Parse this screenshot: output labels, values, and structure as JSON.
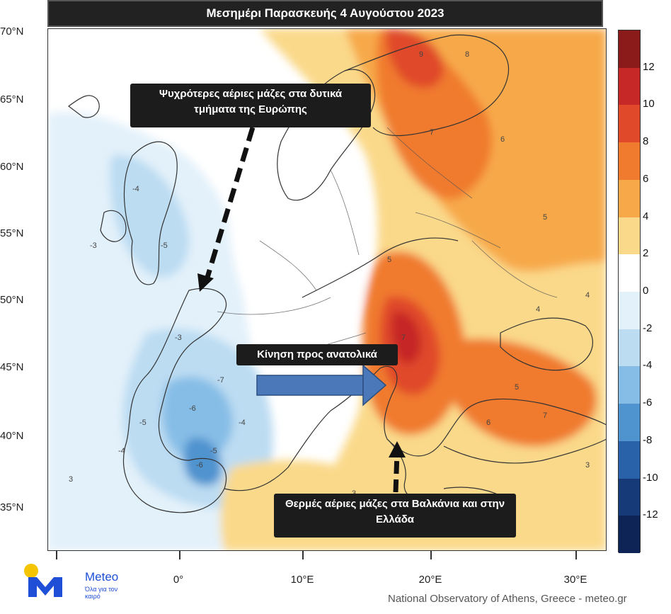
{
  "title": "Μεσημέρι Παρασκευής 4 Αυγούστου 2023",
  "latitude_labels": [
    "70°N",
    "65°N",
    "60°N",
    "55°N",
    "50°N",
    "45°N",
    "40°N",
    "35°N"
  ],
  "longitude_labels": [
    "0°",
    "10°E",
    "20°E",
    "30°E"
  ],
  "colorbar": {
    "tick_labels": [
      "12",
      "10",
      "8",
      "6",
      "4",
      "2",
      "0",
      "-2",
      "-4",
      "-6",
      "-8",
      "-10",
      "-12"
    ],
    "colors": [
      "#8b1a1a",
      "#c62828",
      "#e04a2b",
      "#f07a2e",
      "#f7a94a",
      "#fad98a",
      "#ffffff",
      "#e3f1fa",
      "#bcdcf2",
      "#86bde6",
      "#4f93cf",
      "#2a62a9",
      "#163a78",
      "#0f2456"
    ]
  },
  "callouts": {
    "cold_west": "Ψυχρότερες αέριες μάζες στα δυτικά τμήματα της Ευρώπης",
    "eastward_motion": "Κίνηση προς ανατολικά",
    "warm_balkans": "Θερμές αέριες μάζες στα Βαλκάνια και στην Ελλάδα"
  },
  "logo": {
    "name": "Meteo",
    "tagline": "Όλα για τον καιρό"
  },
  "credit": "National Observatory of Athens, Greece - meteo.gr",
  "map_value_labels": [
    "-4",
    "-5",
    "-3",
    "-6",
    "-7",
    "-5",
    "-4",
    "3",
    "5",
    "7",
    "8",
    "9",
    "7",
    "6",
    "5",
    "4",
    "3",
    "-3",
    "-5",
    "-4",
    "-6",
    "5",
    "7",
    "6",
    "4",
    "3",
    "3"
  ]
}
